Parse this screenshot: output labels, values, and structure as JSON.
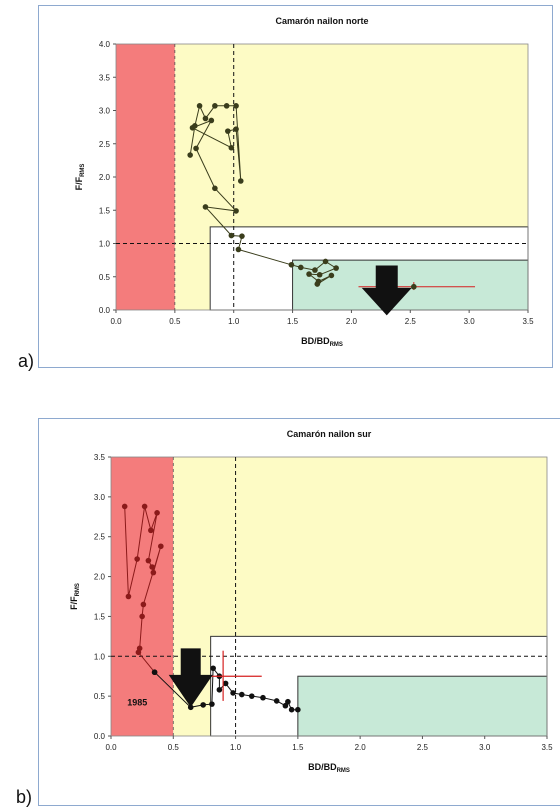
{
  "panels": [
    {
      "letter": "a)",
      "chart_data": {
        "type": "scatter",
        "title": "Camarón nailon norte",
        "ylabel": {
          "base": "F/F",
          "sub": "RMS"
        },
        "xlabel": {
          "base": "BD/BD",
          "sub": "RMS"
        },
        "xlim": [
          0,
          3.5
        ],
        "ylim": [
          0,
          4.0
        ],
        "x_ticks": [
          "0.0",
          "0.5",
          "1.0",
          "1.5",
          "2.0",
          "2.5",
          "3.0",
          "3.5"
        ],
        "y_ticks": [
          "0.0",
          "0.5",
          "1.0",
          "1.5",
          "2.0",
          "2.5",
          "3.0",
          "3.5",
          "4.0"
        ],
        "reference_lines": {
          "x": 1.0,
          "y": 1.0
        },
        "zones": [
          {
            "name": "collapse",
            "color": "#f47c7c",
            "x": [
              0,
              0.5
            ],
            "y": [
              0,
              4.0
            ]
          },
          {
            "name": "overexploited",
            "color": "#fdfbc5",
            "x": [
              0.5,
              3.5
            ],
            "y": [
              0,
              4.0
            ]
          },
          {
            "name": "full-exploitation",
            "color": "#ffffff",
            "x": [
              0.8,
              3.5
            ],
            "y": [
              0,
              1.25
            ]
          },
          {
            "name": "underexploited",
            "color": "#c7e9d7",
            "x": [
              1.5,
              3.5
            ],
            "y": [
              0,
              0.75
            ]
          }
        ],
        "series": [
          {
            "color": "#3a3d1c",
            "points": [
              [
                0.63,
                2.33
              ],
              [
                0.67,
                2.77
              ],
              [
                0.71,
                3.07
              ],
              [
                0.76,
                2.88
              ],
              [
                0.84,
                3.07
              ],
              [
                0.94,
                3.07
              ],
              [
                1.02,
                3.07
              ],
              [
                1.06,
                1.94
              ],
              [
                1.02,
                2.72
              ],
              [
                0.95,
                2.69
              ],
              [
                0.98,
                2.44
              ],
              [
                0.65,
                2.74
              ],
              [
                0.81,
                2.85
              ],
              [
                0.68,
                2.43
              ],
              [
                0.84,
                1.83
              ],
              [
                1.02,
                1.49
              ],
              [
                0.76,
                1.55
              ],
              [
                0.98,
                1.12
              ],
              [
                1.07,
                1.11
              ],
              [
                1.04,
                0.91
              ],
              [
                1.49,
                0.68
              ],
              [
                1.57,
                0.64
              ],
              [
                1.69,
                0.6
              ],
              [
                1.78,
                0.73
              ],
              [
                1.87,
                0.63
              ],
              [
                1.73,
                0.53
              ],
              [
                1.64,
                0.54
              ],
              [
                1.72,
                0.43
              ],
              [
                1.83,
                0.52
              ],
              [
                1.71,
                0.39
              ]
            ]
          }
        ],
        "final_point": {
          "x": 2.53,
          "y": 0.35,
          "x_err": [
            2.06,
            3.05
          ],
          "y_err": [
            0.3,
            0.42
          ]
        },
        "arrow": {
          "x": 2.3,
          "y_top": 0.67,
          "y_tip": -0.08
        }
      }
    },
    {
      "letter": "b)",
      "chart_data": {
        "type": "scatter",
        "title": "Camarón nailon sur",
        "ylabel": {
          "base": "F/F",
          "sub": "RMS"
        },
        "xlabel": {
          "base": "BD/BD",
          "sub": "RMS"
        },
        "xlim": [
          0,
          3.5
        ],
        "ylim": [
          0,
          3.5
        ],
        "x_ticks": [
          "0.0",
          "0.5",
          "1.0",
          "1.5",
          "2.0",
          "2.5",
          "3.0",
          "3.5"
        ],
        "y_ticks": [
          "0.0",
          "0.5",
          "1.0",
          "1.5",
          "2.0",
          "2.5",
          "3.0",
          "3.5"
        ],
        "reference_lines": {
          "x": 1.0,
          "y": 1.0
        },
        "zones": [
          {
            "name": "collapse",
            "color": "#f47c7c",
            "x": [
              0,
              0.5
            ],
            "y": [
              0,
              3.5
            ]
          },
          {
            "name": "overexploited",
            "color": "#fdfbc5",
            "x": [
              0.5,
              3.5
            ],
            "y": [
              0,
              3.5
            ]
          },
          {
            "name": "full-exploitation",
            "color": "#ffffff",
            "x": [
              0.8,
              3.5
            ],
            "y": [
              0,
              1.25
            ]
          },
          {
            "name": "underexploited",
            "color": "#c7e9d7",
            "x": [
              1.5,
              3.5
            ],
            "y": [
              0,
              0.75
            ]
          }
        ],
        "series": [
          {
            "color": "#8b1a1a",
            "points": [
              [
                0.11,
                2.88
              ],
              [
                0.14,
                1.75
              ],
              [
                0.21,
                2.22
              ],
              [
                0.27,
                2.88
              ],
              [
                0.32,
                2.58
              ],
              [
                0.37,
                2.8
              ],
              [
                0.3,
                2.2
              ],
              [
                0.33,
                2.12
              ],
              [
                0.34,
                2.05
              ],
              [
                0.4,
                2.38
              ],
              [
                0.26,
                1.65
              ],
              [
                0.25,
                1.5
              ],
              [
                0.23,
                1.1
              ],
              [
                0.22,
                1.05
              ],
              [
                0.35,
                0.8
              ]
            ]
          },
          {
            "color": "#111111",
            "points": [
              [
                0.35,
                0.8
              ],
              [
                0.64,
                0.36
              ],
              [
                0.74,
                0.39
              ],
              [
                0.81,
                0.4
              ],
              [
                0.82,
                0.85
              ],
              [
                0.87,
                0.75
              ],
              [
                0.87,
                0.58
              ],
              [
                0.92,
                0.66
              ],
              [
                0.98,
                0.54
              ],
              [
                1.05,
                0.52
              ],
              [
                1.13,
                0.5
              ],
              [
                1.22,
                0.48
              ],
              [
                1.33,
                0.44
              ],
              [
                1.4,
                0.38
              ],
              [
                1.42,
                0.43
              ],
              [
                1.45,
                0.33
              ],
              [
                1.5,
                0.33
              ]
            ]
          }
        ],
        "year_label": "1985",
        "crosshair": {
          "x": 0.9,
          "y": 0.75,
          "x_err": [
            0.78,
            1.21
          ],
          "y_err": [
            0.44,
            1.07
          ]
        },
        "arrow": {
          "x": 0.64,
          "y_top": 1.1,
          "y_tip": 0.36
        }
      }
    }
  ]
}
